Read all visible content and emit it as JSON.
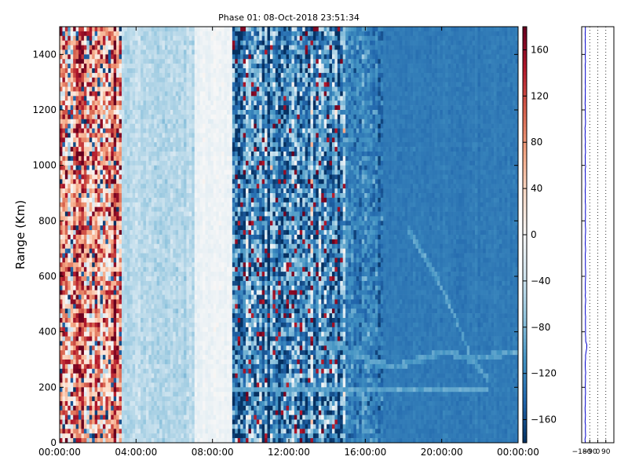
{
  "chart_data": [
    {
      "type": "heatmap",
      "title": "Phase 01: 08-Oct-2018 23:51:34",
      "xlabel": "",
      "ylabel": "Range (Km)",
      "x_ticks": [
        "00:00:00",
        "04:00:00",
        "08:00:00",
        "12:00:00",
        "16:00:00",
        "20:00:00",
        "00:00:00"
      ],
      "x_range_hours": [
        0,
        24
      ],
      "y_ticks": [
        0,
        200,
        400,
        600,
        800,
        1000,
        1200,
        1400
      ],
      "ylim": [
        0,
        1500
      ],
      "colormap": "RdBu_r",
      "colorbar": {
        "ticks": [
          -160,
          -120,
          -80,
          -40,
          0,
          40,
          80,
          120,
          160
        ],
        "range": [
          -180,
          180
        ]
      },
      "phase_profile_summary": [
        {
          "hour_start": 0,
          "hour_end": 3.3,
          "mean_phase": 70,
          "noise": 110
        },
        {
          "hour_start": 3.3,
          "hour_end": 7.0,
          "mean_phase": -50,
          "noise": 18
        },
        {
          "hour_start": 7.0,
          "hour_end": 9.1,
          "mean_phase": -10,
          "noise": 10
        },
        {
          "hour_start": 9.1,
          "hour_end": 15.0,
          "mean_phase": -110,
          "noise": 95
        },
        {
          "hour_start": 15.0,
          "hour_end": 17.0,
          "mean_phase": -120,
          "noise": 35
        },
        {
          "hour_start": 17.0,
          "hour_end": 24.0,
          "mean_phase": -128,
          "noise": 8
        }
      ],
      "features": [
        {
          "label": "band",
          "hour_start": 9.1,
          "hour_end": 22.5,
          "range_km": 190,
          "phase": -95
        },
        {
          "label": "trace",
          "hour_points": [
            18.2,
            20.0,
            20.9,
            21.6,
            22.4
          ],
          "range_km": [
            780,
            560,
            420,
            300,
            230
          ],
          "phase": -100
        },
        {
          "label": "trace",
          "hour_points": [
            13.5,
            16.0,
            17.5,
            20.2,
            21.4,
            24.0
          ],
          "range_km": [
            380,
            300,
            270,
            330,
            300,
            330
          ],
          "phase": -100
        }
      ]
    },
    {
      "type": "line",
      "x_ticks": [
        -180,
        -90,
        0,
        90
      ],
      "xlim": [
        -180,
        180
      ],
      "ylim": [
        0,
        1500
      ],
      "grid": true,
      "series": [
        {
          "color": "#0000cc",
          "y": [
            0,
            300,
            330,
            345,
            360,
            380,
            1500
          ],
          "x": [
            -140,
            -138,
            -130,
            -118,
            -132,
            -138,
            -140
          ]
        }
      ]
    }
  ]
}
